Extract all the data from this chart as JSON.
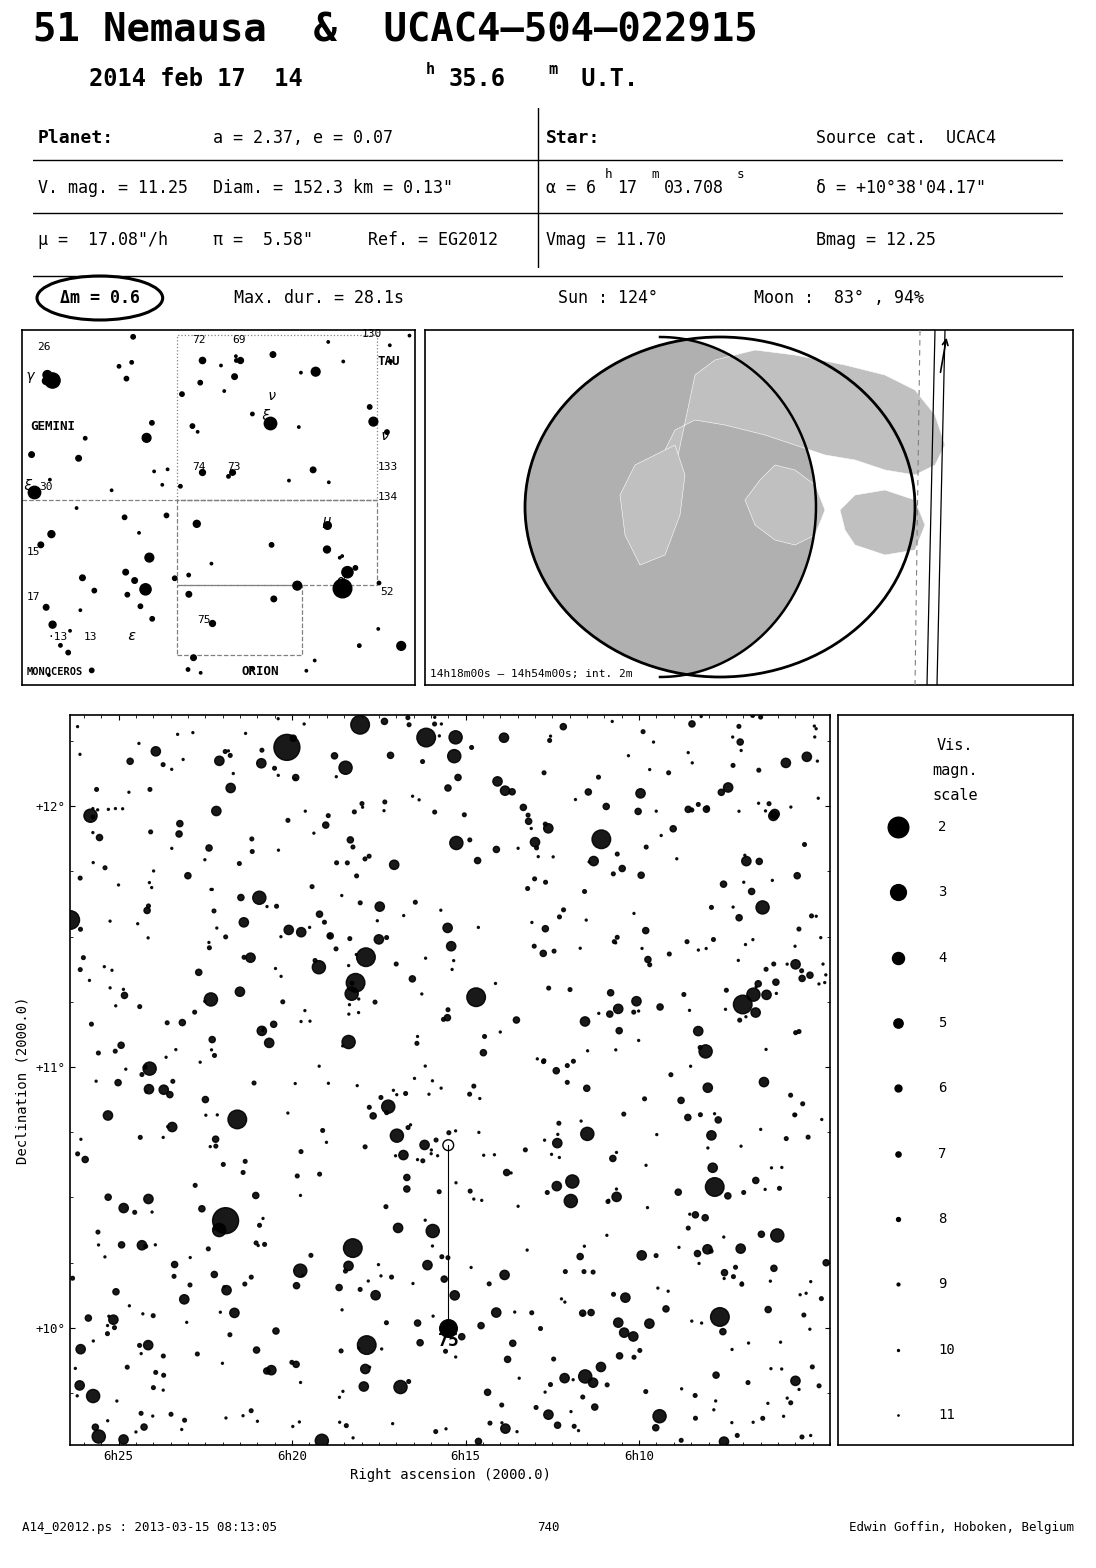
{
  "title_line1": "51 Nemausa  &  UCAC4–504–022915",
  "subtitle_pre": "2014 feb 17  14",
  "subtitle_mid": "35.6",
  "subtitle_end": " U.T.",
  "planet_label": "Planet:",
  "planet_a": "a = 2.37, e = 0.07",
  "planet_vmag": "V. mag. = 11.25",
  "planet_diam": "Diam. = 152.3 km = 0.13\"",
  "planet_mu": "μ =  17.08\"/h",
  "planet_pi": "π =  5.58\"",
  "planet_ref": "Ref. = EG2012",
  "star_label": "Star:",
  "star_source": "Source cat.  UCAC4",
  "star_alpha_pre": "α = 6",
  "star_alpha_m": "17",
  "star_alpha_s": "03.708",
  "star_delta": "δ = +10°38'04.17\"",
  "star_vmag": "Vmag = 11.70",
  "star_bmag": "Bmag = 12.25",
  "dm_label": "Δm = 0.6",
  "max_dur": "Max. dur. = 28.1s",
  "sun": "Sun : 124°",
  "moon": "Moon :  83° , 94%",
  "time_range": "14h18m00s – 14h54m00s; int. 2m",
  "footer_left": "A14_02012.ps : 2013-03-15 08:13:05",
  "footer_center": "740",
  "footer_right": "Edwin Goffin, Hoboken, Belgium",
  "bg_color": "#ffffff",
  "vis_mag_labels": [
    2,
    3,
    4,
    5,
    6,
    7,
    8,
    9,
    10,
    11
  ],
  "vis_mag_sizes_pt": [
    220,
    130,
    75,
    45,
    25,
    14,
    8,
    4,
    2,
    0.8
  ]
}
